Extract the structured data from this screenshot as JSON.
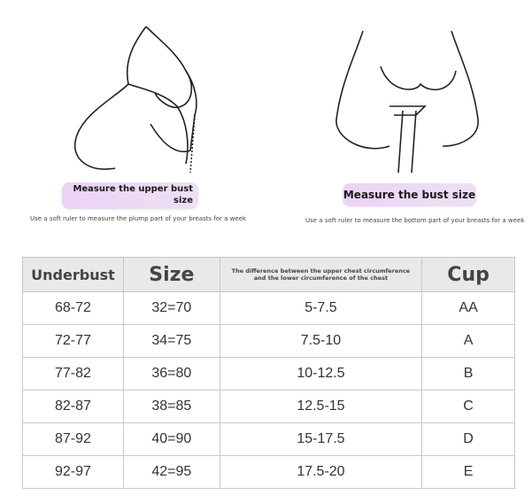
{
  "left_panel": {
    "label": "Measure the upper bust size",
    "note": "Use a soft ruler to measure the plump part of your breasts for a week"
  },
  "right_panel": {
    "label": "Measure the bust size",
    "note": "Use a soft ruler to measure the bottom part of your breasts for a week"
  },
  "table": {
    "headers": [
      "Underbust",
      "Size",
      "The difference between the upper chest circumference and the lower circumference of the chest",
      "Cup"
    ],
    "rows": [
      [
        "68-72",
        "32=70",
        "5-7.5",
        "AA"
      ],
      [
        "72-77",
        "34=75",
        "7.5-10",
        "A"
      ],
      [
        "77-82",
        "36=80",
        "10-12.5",
        "B"
      ],
      [
        "82-87",
        "38=85",
        "12.5-15",
        "C"
      ],
      [
        "87-92",
        "40=90",
        "15-17.5",
        "D"
      ],
      [
        "92-97",
        "42=95",
        "17.5-20",
        "E"
      ]
    ]
  },
  "colors": {
    "label_bg": "#ecd3f7",
    "header_bg": "#e9e9e9"
  }
}
